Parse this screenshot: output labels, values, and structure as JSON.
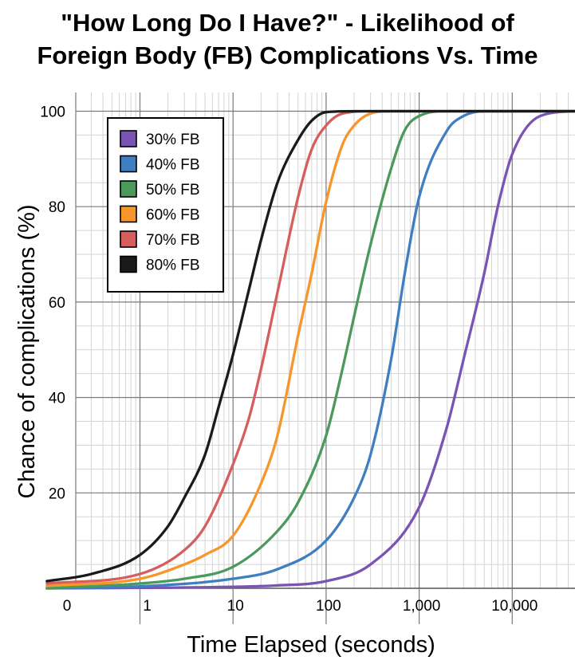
{
  "title_lines": [
    "\"How Long Do I Have?\" - Likelihood of",
    "Foreign Body (FB) Complications Vs. Time"
  ],
  "chart_data": {
    "type": "line",
    "title": "\"How Long Do I Have?\" - Likelihood of Foreign Body (FB) Complications Vs. Time",
    "xlabel": "Time Elapsed (seconds)",
    "ylabel": "Chance of complications (%)",
    "x_scale": "log",
    "xlim": [
      0.1,
      50000
    ],
    "ylim": [
      0,
      100
    ],
    "x_ticks": [
      {
        "value": 0.1,
        "label": "0"
      },
      {
        "value": 1,
        "label": "1"
      },
      {
        "value": 10,
        "label": "10"
      },
      {
        "value": 100,
        "label": "100"
      },
      {
        "value": 1000,
        "label": "1,000"
      },
      {
        "value": 10000,
        "label": "10,000"
      }
    ],
    "y_ticks": [
      20,
      40,
      60,
      80,
      100
    ],
    "grid": true,
    "legend_position": "top-left",
    "series": [
      {
        "name": "30% FB",
        "color": "#7a54b5",
        "x": [
          0.1,
          1,
          10,
          30,
          100,
          300,
          1000,
          2000,
          3000,
          5000,
          7000,
          10000,
          20000,
          50000
        ],
        "y": [
          0,
          0.1,
          0.3,
          0.6,
          1.5,
          5,
          17,
          34,
          48,
          66,
          80,
          91,
          99,
          100
        ]
      },
      {
        "name": "40% FB",
        "color": "#3f7fc1",
        "x": [
          0.1,
          1,
          10,
          30,
          100,
          200,
          300,
          500,
          700,
          1000,
          2000,
          3000,
          5000,
          10000,
          50000
        ],
        "y": [
          0,
          0.4,
          2,
          4,
          10,
          19,
          28,
          48,
          66,
          82,
          96,
          99,
          100,
          100,
          100
        ]
      },
      {
        "name": "50% FB",
        "color": "#4c9a5b",
        "x": [
          0.1,
          1,
          3,
          10,
          30,
          50,
          100,
          150,
          200,
          300,
          500,
          700,
          1000,
          2000,
          50000
        ],
        "y": [
          0,
          1,
          2,
          4.5,
          12,
          18,
          32,
          46,
          57,
          72,
          88,
          96,
          99,
          100,
          100
        ]
      },
      {
        "name": "60% FB",
        "color": "#f7962b",
        "x": [
          0.1,
          1,
          3,
          5,
          10,
          20,
          30,
          50,
          70,
          100,
          150,
          200,
          300,
          500,
          50000
        ],
        "y": [
          0.5,
          2,
          5,
          7,
          11,
          22,
          32,
          53,
          66,
          81,
          93,
          97,
          99.5,
          100,
          100
        ]
      },
      {
        "name": "70% FB",
        "color": "#d65e5e",
        "x": [
          0.1,
          1,
          3,
          5,
          10,
          15,
          20,
          30,
          50,
          70,
          100,
          150,
          300,
          50000
        ],
        "y": [
          1,
          3,
          8,
          13,
          26,
          36,
          46,
          62,
          82,
          92,
          97,
          99.5,
          100,
          100
        ]
      },
      {
        "name": "80% FB",
        "color": "#1a1a1a",
        "x": [
          0.1,
          0.3,
          1,
          2,
          3,
          5,
          7,
          10,
          15,
          20,
          30,
          50,
          70,
          100,
          200,
          50000
        ],
        "y": [
          1.5,
          3,
          7,
          13,
          19,
          28,
          38,
          49,
          63,
          73,
          85,
          94,
          98,
          99.8,
          100,
          100
        ]
      }
    ]
  }
}
